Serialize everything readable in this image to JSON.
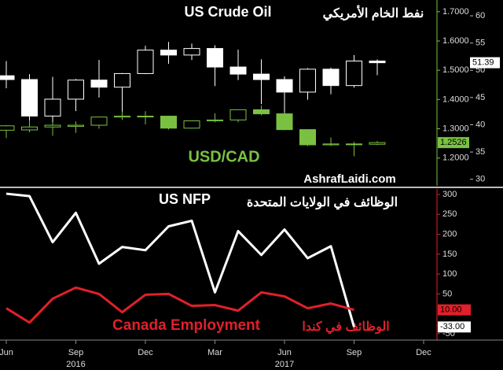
{
  "chart_data": [
    {
      "type": "candlestick",
      "watermark": "AshrafLaidi.com",
      "ylim": [
        1.105,
        1.74
      ],
      "yticks": [
        {
          "value": 1.2,
          "label": "1.2000"
        },
        {
          "value": 1.3,
          "label": "1.3000"
        },
        {
          "value": 1.4,
          "label": "1.4000"
        },
        {
          "value": 1.5,
          "label": "1.5000"
        },
        {
          "value": 1.6,
          "label": "1.6000"
        },
        {
          "value": 1.7,
          "label": "1.7000"
        }
      ],
      "y2lim": [
        28.8,
        62.9
      ],
      "y2ticks": [
        30,
        35,
        40,
        45,
        50,
        55,
        60
      ],
      "series": [
        {
          "name": "US Crude Oil",
          "name_ar": "نفط الخام الأمريكي",
          "color": "#ffffff",
          "axis": "y2",
          "last_value_label": "51.39",
          "open": [
            49.0,
            48.3,
            41.6,
            44.7,
            48.2,
            46.9,
            49.4,
            53.7,
            52.8,
            54.0,
            50.6,
            49.3,
            48.3,
            46.0,
            50.2,
            47.2,
            51.7,
            null,
            null
          ],
          "high": [
            51.7,
            49.3,
            48.8,
            48.4,
            51.9,
            49.5,
            54.5,
            55.2,
            54.9,
            54.6,
            53.8,
            52.0,
            48.9,
            50.4,
            50.5,
            52.8,
            52.0,
            null,
            null
          ],
          "low": [
            46.7,
            40.6,
            39.2,
            42.5,
            45.0,
            42.2,
            49.3,
            51.2,
            51.9,
            47.1,
            48.2,
            43.8,
            42.1,
            44.6,
            45.6,
            46.8,
            49.1,
            null,
            null
          ],
          "close": [
            48.3,
            41.6,
            44.7,
            48.2,
            46.9,
            49.4,
            53.7,
            52.8,
            54.0,
            50.6,
            49.3,
            48.3,
            46.0,
            50.2,
            47.2,
            51.7,
            51.39,
            null,
            null
          ]
        },
        {
          "name": "USD/CAD",
          "color": "#7ac142",
          "last_value_label": "1.2526",
          "open": [
            1.295,
            1.296,
            1.306,
            1.308,
            1.312,
            1.34,
            1.343,
            1.343,
            1.302,
            1.327,
            1.33,
            1.365,
            1.351,
            1.297,
            1.245,
            1.248,
            1.247,
            null,
            null
          ],
          "high": [
            1.313,
            1.329,
            1.323,
            1.325,
            1.34,
            1.359,
            1.36,
            1.344,
            1.328,
            1.353,
            1.366,
            1.379,
            1.354,
            1.297,
            1.27,
            1.255,
            1.258,
            null,
            null
          ],
          "low": [
            1.268,
            1.288,
            1.276,
            1.286,
            1.3,
            1.33,
            1.315,
            1.297,
            1.3,
            1.322,
            1.322,
            1.346,
            1.295,
            1.241,
            1.241,
            1.206,
            1.244,
            null,
            null
          ],
          "close": [
            1.31,
            1.306,
            1.312,
            1.312,
            1.34,
            1.343,
            1.343,
            1.302,
            1.327,
            1.33,
            1.365,
            1.351,
            1.297,
            1.245,
            1.248,
            1.247,
            1.2526,
            null,
            null
          ]
        }
      ]
    },
    {
      "type": "line",
      "categories": [
        "Jun",
        null,
        null,
        "Sep",
        null,
        null,
        "Dec",
        null,
        null,
        "Mar",
        null,
        null,
        "Jun",
        null,
        null,
        "Sep",
        null,
        null,
        "Dec"
      ],
      "year_labels": [
        {
          "label": "2016",
          "index": 3
        },
        {
          "label": "2017",
          "index": 12
        }
      ],
      "ylim": [
        -66,
        314
      ],
      "yticks": [
        -50,
        50,
        100,
        150,
        200,
        250,
        300
      ],
      "series": [
        {
          "name": "US NFP",
          "name_ar": "الوظائف في الولايات المتحدة",
          "color": "#ffffff",
          "last_value_label": "-33.00",
          "values": [
            302,
            296,
            180,
            254,
            126,
            168,
            160,
            220,
            234,
            54,
            208,
            148,
            212,
            140,
            170,
            -33,
            null,
            null,
            null
          ]
        },
        {
          "name": "Canada Employment",
          "name_ar": "الوظائف في كندا",
          "color": "#e0202a",
          "last_value_label": "10.00",
          "values": [
            14,
            -22,
            38,
            66,
            50,
            4,
            48,
            50,
            20,
            22,
            8,
            54,
            44,
            14,
            26,
            10,
            null,
            null,
            null
          ]
        }
      ]
    }
  ]
}
